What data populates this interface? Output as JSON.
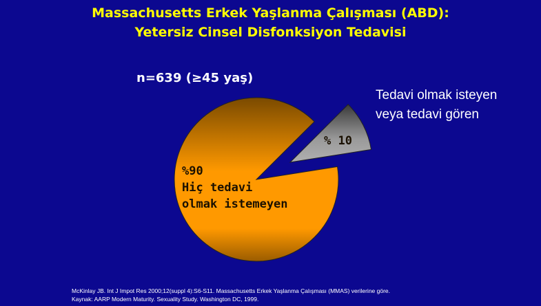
{
  "slide": {
    "title_line1": "Massachusetts Erkek Yaşlanma Çalışması (ABD):",
    "title_line2": "Yetersiz Cinsel Disfonksiyon Tedavisi",
    "sample": "n=639 (≥45 yaş)",
    "legend_line1": "Tedavi  olmak isteyen",
    "legend_line2": "veya tedavi gören",
    "footnote_line1": "McKinlay JB. Int J Impot Res 2000;12(suppl 4):S6-S11. Massachusetts Erkek Yaşlanma Çalışması (MMAS) verilerine göre.",
    "footnote_line2": "Kaynak: AARP Modern Maturity. Sexuality Study. Washington DC, 1999."
  },
  "colors": {
    "background": "#0c0890",
    "title": "#ffff00",
    "orange": "#ff9900",
    "gray": "#8a8a8a"
  },
  "chart_data": {
    "type": "pie",
    "slices": [
      {
        "label_line1": "%90",
        "label_line2": "Hiç tedavi",
        "label_line3": "olmak istemeyen",
        "value": 90,
        "color": "#ff9900",
        "exploded": false
      },
      {
        "label_line1": "% 10",
        "value": 10,
        "color": "#8a8a8a",
        "exploded": true
      }
    ]
  }
}
